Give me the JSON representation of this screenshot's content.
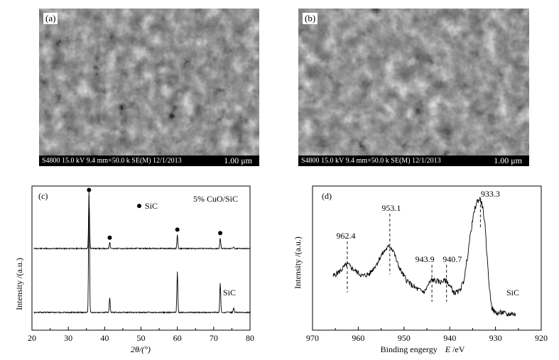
{
  "panels": {
    "a": {
      "label": "(a)",
      "info_bar": "S4800 15.0 kV 9.4 mm×50.0 k SE(M) 12/1/2013",
      "scale_bar": "1.00 μm"
    },
    "b": {
      "label": "(b)",
      "info_bar": "S4800 15.0 kV 9.4 mm×50.0 k SE(M) 12/1/2013",
      "scale_bar": "1.00 μm"
    }
  },
  "chart_data": [
    {
      "type": "line",
      "panel_label": "(c)",
      "xlabel": "2θ/(°)",
      "ylabel": "Intensity /(a.u.)",
      "xlim": [
        20,
        80
      ],
      "xticks": [
        "20",
        "30",
        "40",
        "50",
        "60",
        "70",
        "80"
      ],
      "legend_marker": "●",
      "legend_text": "SiC",
      "series": [
        {
          "name": "5% CuO/SiC",
          "peaks": [
            {
              "x": 35.7,
              "height": 0.92,
              "marker": true
            },
            {
              "x": 41.4,
              "height": 0.1,
              "marker": true
            },
            {
              "x": 60.0,
              "height": 0.24,
              "marker": true
            },
            {
              "x": 71.8,
              "height": 0.18,
              "marker": true
            },
            {
              "x": 75.5,
              "height": 0.03,
              "marker": false
            }
          ]
        },
        {
          "name": "SiC",
          "peaks": [
            {
              "x": 35.7,
              "height": 1.0,
              "marker": false
            },
            {
              "x": 41.4,
              "height": 0.12,
              "marker": false
            },
            {
              "x": 60.0,
              "height": 0.33,
              "marker": false
            },
            {
              "x": 71.8,
              "height": 0.24,
              "marker": false
            },
            {
              "x": 75.5,
              "height": 0.04,
              "marker": false
            }
          ]
        }
      ]
    },
    {
      "type": "line",
      "panel_label": "(d)",
      "xlabel_text": "Binding engergy",
      "xlabel_italic": "E",
      "xlabel_unit": "/eV",
      "ylabel": "Intensity /(a.u.)",
      "xlim": [
        970,
        920
      ],
      "xticks": [
        "970",
        "960",
        "950",
        "940",
        "930",
        "920"
      ],
      "series": [
        {
          "name": "SiC",
          "x": [
            965.5,
            964,
            963,
            962.4,
            961.5,
            960.5,
            959,
            957.5,
            956,
            955,
            954,
            953.1,
            952.3,
            951.5,
            950.5,
            949.5,
            948.5,
            947.5,
            946.5,
            945.5,
            944.5,
            943.9,
            943,
            942,
            941.3,
            940.7,
            940,
            939,
            938,
            937,
            936.5,
            936,
            935.5,
            935,
            934.5,
            934,
            933.3,
            932.8,
            932.3,
            931.8,
            931.3,
            930.8,
            930.2,
            929.5,
            928.5,
            927.5,
            926.5,
            925.5
          ],
          "y": [
            0.36,
            0.4,
            0.44,
            0.46,
            0.43,
            0.4,
            0.36,
            0.38,
            0.46,
            0.53,
            0.58,
            0.61,
            0.57,
            0.47,
            0.39,
            0.33,
            0.29,
            0.26,
            0.24,
            0.23,
            0.3,
            0.33,
            0.32,
            0.31,
            0.32,
            0.32,
            0.28,
            0.22,
            0.23,
            0.31,
            0.42,
            0.56,
            0.7,
            0.82,
            0.92,
            0.98,
            1.0,
            0.93,
            0.78,
            0.5,
            0.25,
            0.1,
            0.06,
            0.05,
            0.06,
            0.04,
            0.05,
            0.04
          ]
        }
      ],
      "annotations": [
        {
          "text": "962.4",
          "x": 962.4
        },
        {
          "text": "953.1",
          "x": 953.1
        },
        {
          "text": "943.9",
          "x": 943.9
        },
        {
          "text": "940.7",
          "x": 940.7
        },
        {
          "text": "933.3",
          "x": 933.3
        }
      ],
      "series_label": "SiC"
    }
  ]
}
